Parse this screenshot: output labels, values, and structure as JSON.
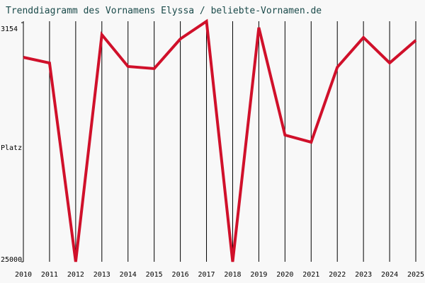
{
  "chart_data": {
    "type": "line",
    "title": "Trenddiagramm des Vornamens Elyssa / beliebte-Vornamen.de",
    "y_label": "Platz",
    "x": [
      2010,
      2011,
      2012,
      2013,
      2014,
      2015,
      2016,
      2017,
      2018,
      2019,
      2020,
      2021,
      2022,
      2023,
      2024,
      2025
    ],
    "series": [
      {
        "name": "Elyssa",
        "color": "#d0102a",
        "values": [
          6320,
          6837,
          25000,
          4252,
          7159,
          7353,
          4640,
          3030,
          25000,
          3606,
          13425,
          14071,
          7224,
          4511,
          6837,
          4769
        ]
      }
    ],
    "ylim": [
      25000,
      3154
    ],
    "yticks": [
      3154,
      25000
    ],
    "xlim": [
      2010,
      2025
    ],
    "xticks": [
      2010,
      2011,
      2012,
      2013,
      2014,
      2015,
      2016,
      2017,
      2018,
      2019,
      2020,
      2021,
      2022,
      2023,
      2024,
      2025
    ],
    "grid": true
  }
}
